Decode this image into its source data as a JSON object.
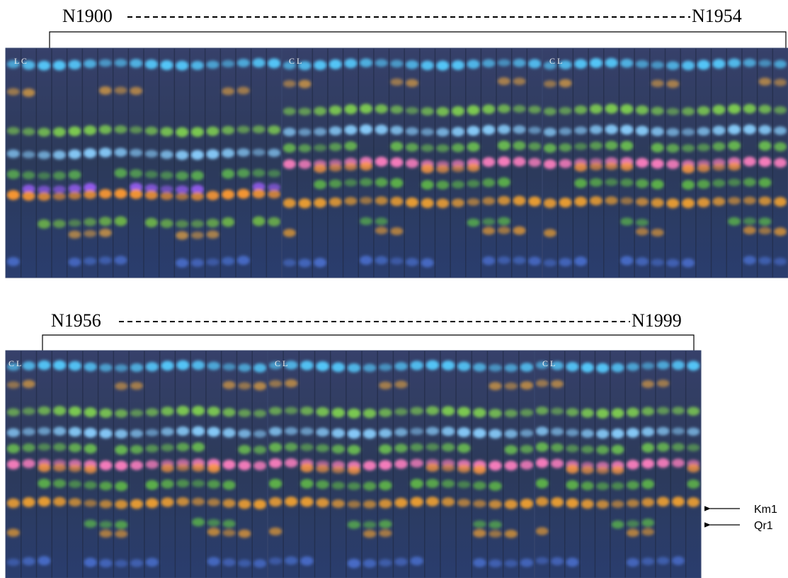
{
  "groups": [
    {
      "start": "N1900",
      "end": "N1954",
      "plates": [
        {
          "lanes": "L C"
        },
        {
          "lanes": "C L"
        },
        {
          "lanes": "C L"
        }
      ]
    },
    {
      "start": "N1956",
      "end": "N1999",
      "plates": [
        {
          "lanes": "C L"
        },
        {
          "lanes": "C L"
        },
        {
          "lanes": "C L"
        }
      ]
    }
  ],
  "markers": [
    {
      "label": "Km1"
    },
    {
      "label": "Qr1"
    }
  ]
}
